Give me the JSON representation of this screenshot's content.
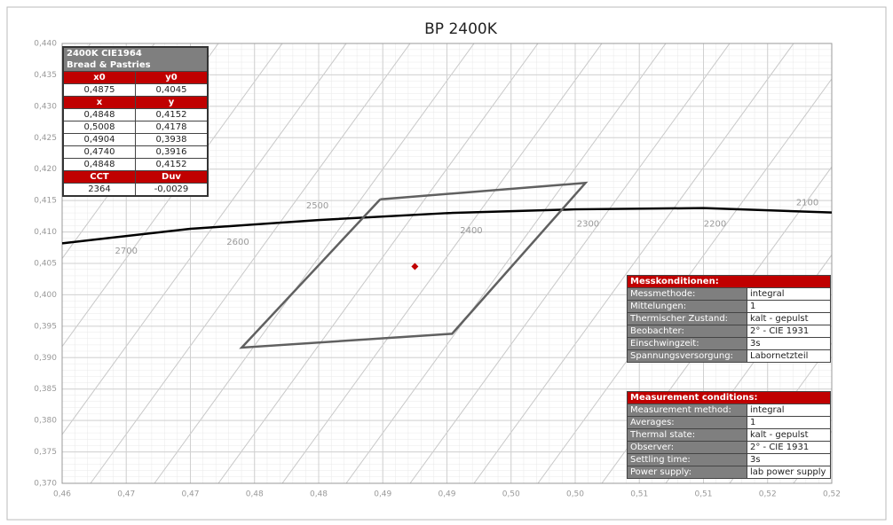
{
  "chart_data": {
    "type": "line",
    "title": "BP 2400K",
    "xlim": [
      0.46,
      0.52
    ],
    "ylim": [
      0.37,
      0.44
    ],
    "xticks": [
      {
        "value": 0.46,
        "label": "0,46"
      },
      {
        "value": 0.465,
        "label": "0,47"
      },
      {
        "value": 0.47,
        "label": "0,47"
      },
      {
        "value": 0.475,
        "label": "0,48"
      },
      {
        "value": 0.48,
        "label": "0,48"
      },
      {
        "value": 0.485,
        "label": "0,49"
      },
      {
        "value": 0.49,
        "label": "0,49"
      },
      {
        "value": 0.495,
        "label": "0,50"
      },
      {
        "value": 0.5,
        "label": "0,50"
      },
      {
        "value": 0.505,
        "label": "0,51"
      },
      {
        "value": 0.51,
        "label": "0,51"
      },
      {
        "value": 0.515,
        "label": "0,52"
      },
      {
        "value": 0.52,
        "label": "0,52"
      }
    ],
    "yticks": [
      {
        "value": 0.37,
        "label": "0,370"
      },
      {
        "value": 0.375,
        "label": "0,375"
      },
      {
        "value": 0.38,
        "label": "0,380"
      },
      {
        "value": 0.385,
        "label": "0,385"
      },
      {
        "value": 0.39,
        "label": "0,390"
      },
      {
        "value": 0.395,
        "label": "0,395"
      },
      {
        "value": 0.4,
        "label": "0,400"
      },
      {
        "value": 0.405,
        "label": "0,405"
      },
      {
        "value": 0.41,
        "label": "0,410"
      },
      {
        "value": 0.415,
        "label": "0,415"
      },
      {
        "value": 0.42,
        "label": "0,420"
      },
      {
        "value": 0.425,
        "label": "0,425"
      },
      {
        "value": 0.43,
        "label": "0,430"
      },
      {
        "value": 0.435,
        "label": "0,435"
      },
      {
        "value": 0.44,
        "label": "0,440"
      }
    ],
    "grid": true,
    "locus": {
      "color": "#000000",
      "x": [
        0.46,
        0.47,
        0.48,
        0.49,
        0.5,
        0.51,
        0.52
      ],
      "y": [
        0.4082,
        0.4105,
        0.4119,
        0.413,
        0.4136,
        0.4138,
        0.4131
      ]
    },
    "polygon": {
      "color": "#606060",
      "x": [
        0.4848,
        0.5008,
        0.4904,
        0.474,
        0.4848
      ],
      "y": [
        0.4152,
        0.4178,
        0.3938,
        0.3916,
        0.4152
      ]
    },
    "point": {
      "color": "#c00000",
      "x": 0.4875,
      "y": 0.4045
    },
    "isotherms": [
      {
        "label": "2700",
        "x": 0.465,
        "y": 0.407
      },
      {
        "label": "2600",
        "x": 0.4737,
        "y": 0.4084
      },
      {
        "label": "2500",
        "x": 0.4799,
        "y": 0.4142
      },
      {
        "label": "2400",
        "x": 0.4919,
        "y": 0.4102
      },
      {
        "label": "2300",
        "x": 0.501,
        "y": 0.4113
      },
      {
        "label": "2200",
        "x": 0.5109,
        "y": 0.4113
      },
      {
        "label": "2100",
        "x": 0.5181,
        "y": 0.4147
      }
    ]
  },
  "tables": {
    "summary": {
      "title": "2400K CIE1964",
      "subtitle": "Bread & Pastries",
      "rows": [
        [
          "x0",
          "y0"
        ],
        [
          "0,4875",
          "0,4045"
        ],
        [
          "x",
          "y"
        ],
        [
          "0,4848",
          "0,4152"
        ],
        [
          "0,5008",
          "0,4178"
        ],
        [
          "0,4904",
          "0,3938"
        ],
        [
          "0,4740",
          "0,3916"
        ],
        [
          "0,4848",
          "0,4152"
        ],
        [
          "CCT",
          "Duv"
        ],
        [
          "2364",
          "-0,0029"
        ]
      ],
      "header_rows": [
        0,
        2,
        8
      ]
    },
    "de": {
      "title": "Messkonditionen:",
      "rows": [
        [
          "Messmethode:",
          "integral"
        ],
        [
          "Mittelungen:",
          "1"
        ],
        [
          "Thermischer Zustand:",
          "kalt - gepulst"
        ],
        [
          "Beobachter:",
          "2° - CIE 1931"
        ],
        [
          "Einschwingzeit:",
          "3s"
        ],
        [
          "Spannungsversorgung:",
          "Labornetzteil"
        ]
      ]
    },
    "en": {
      "title": "Measurement conditions:",
      "rows": [
        [
          "Measurement method:",
          "integral"
        ],
        [
          "Averages:",
          "1"
        ],
        [
          "Thermal state:",
          "kalt - gepulst"
        ],
        [
          "Observer:",
          "2° - CIE 1931"
        ],
        [
          "Settling time:",
          "3s"
        ],
        [
          "Power supply:",
          "lab power supply"
        ]
      ]
    }
  }
}
